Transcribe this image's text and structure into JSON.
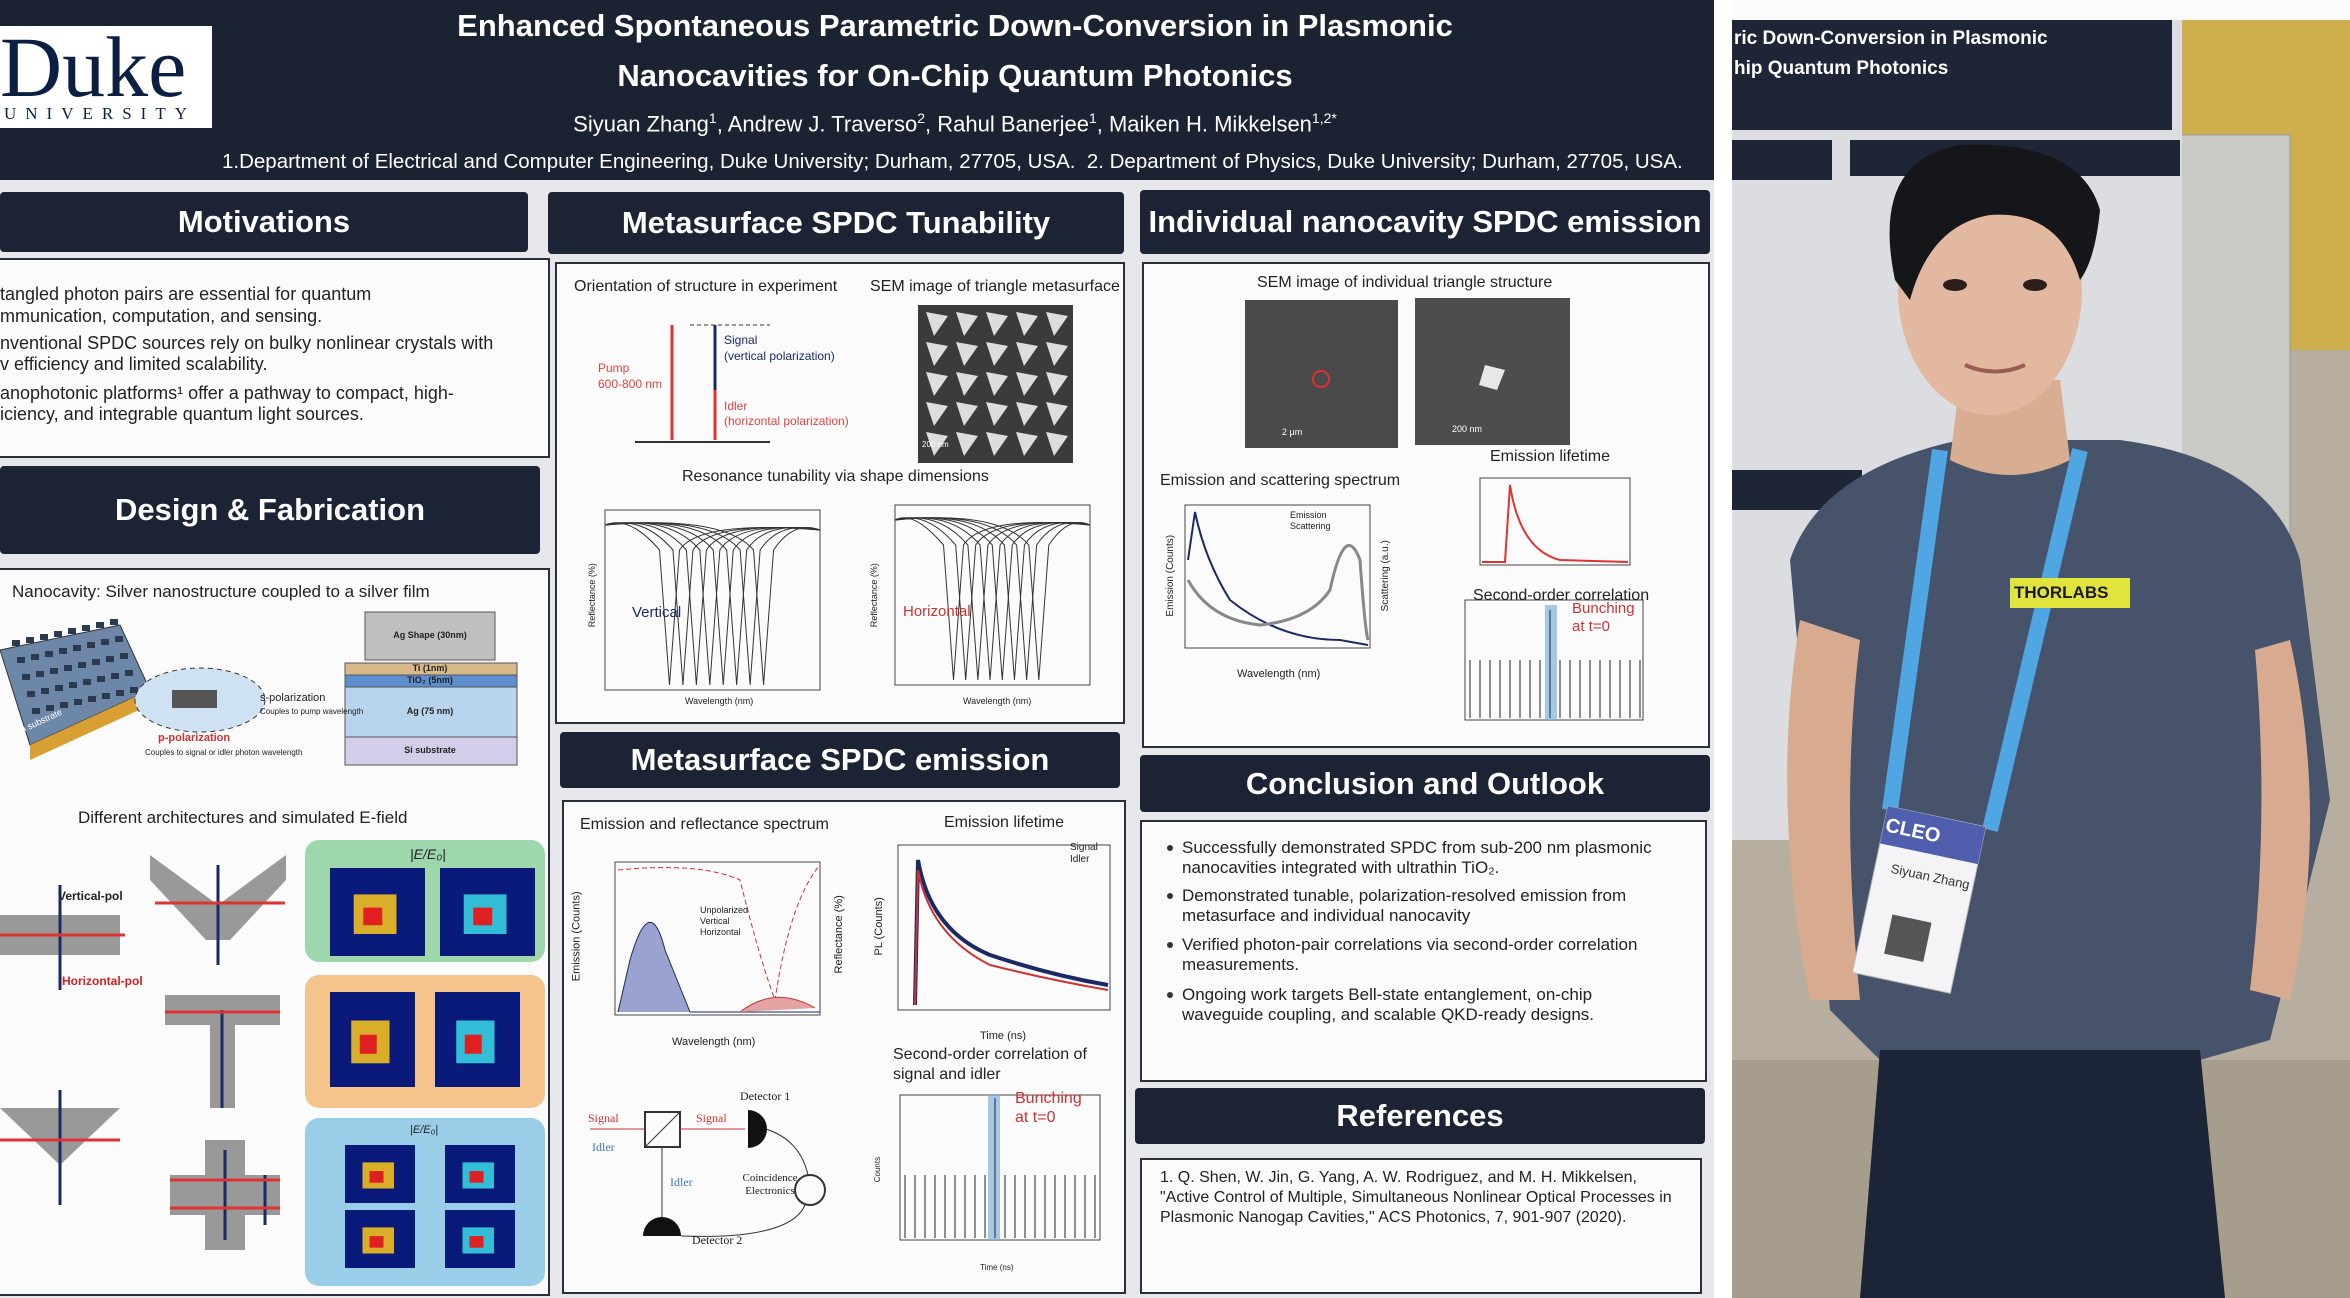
{
  "header": {
    "logo": "Duke",
    "logo_sub": "UNIVERSITY",
    "title_lines": [
      "Enhanced Spontaneous Parametric Down-Conversion in Plasmonic",
      "Nanocavities for On-Chip Quantum Photonics"
    ],
    "authors": [
      {
        "name": "Siyuan Zhang",
        "sup": "1"
      },
      {
        "name": ", Andrew J. Traverso",
        "sup": "2"
      },
      {
        "name": ", Rahul Banerjee",
        "sup": "1"
      },
      {
        "name": ", Maiken H. Mikkelsen",
        "sup": "1,2*"
      }
    ],
    "affiliations": "1.Department of Electrical and Computer Engineering, Duke University; Durham, 27705, USA.  2. Department of Physics, Duke University; Durham, 27705, USA."
  },
  "motivations": {
    "heading": "Motivations",
    "lines": [
      "tangled photon pairs are essential for quantum",
      "mmunication, computation, and sensing.",
      "nventional SPDC sources rely on bulky nonlinear crystals with",
      "v efficiency and limited scalability.",
      "anophotonic platforms¹ offer a pathway to compact, high-",
      "iciency, and integrable quantum light sources."
    ]
  },
  "design": {
    "heading": "Design & Fabrication",
    "caption": "Nanocavity: Silver nanostructure coupled to a silver film",
    "layers": [
      "Ag Shape (30nm)",
      "Ti (1nm)",
      "TiO₂ (5nm)",
      "Ag (75 nm)",
      "Si substrate"
    ],
    "s_pol": "s-polarization",
    "s_pol_note": "Couples to pump wavelength",
    "p_pol": "p-polarization",
    "p_pol_note": "Couples to signal or idler photon wavelength",
    "substrate": "silicon substrate",
    "arch_caption": "Different architectures and simulated E-field",
    "vertical_pol": "Vertical-pol",
    "horizontal_pol": "Horizontal-pol",
    "field_label": "|E/E₀|"
  },
  "tunability": {
    "heading": "Metasurface SPDC Tunability",
    "orientation": "Orientation of structure in experiment",
    "sem": "SEM image of triangle metasurface",
    "pump": "Pump",
    "pump_range": "600-800 nm",
    "signal": "Signal",
    "signal_pol": "(vertical polarization)",
    "idler": "Idler",
    "idler_pol": "(horizontal polarization)",
    "scale": "200 nm",
    "resonance": "Resonance tunability via shape dimensions",
    "vertical": "Vertical",
    "horizontal": "Horizontal",
    "xlabel": "Wavelength (nm)",
    "ylabel": "Reflectance (%)"
  },
  "emission": {
    "heading": "Metasurface SPDC emission",
    "spectrum_title": "Emission and reflectance spectrum",
    "spectrum_ylabel": "Emission (Counts)",
    "spectrum_y2label": "Reflectance (%)",
    "spectrum_xlabel": "Wavelength (nm)",
    "legend": [
      "Unpolarized",
      "Vertical",
      "Horizontal"
    ],
    "lifetime_title": "Emission lifetime",
    "lifetime_legend": [
      "Signal",
      "Idler"
    ],
    "lifetime_xlabel": "Time (ns)",
    "lifetime_ylabel": "PL (Counts)",
    "setup": {
      "signal": "Signal",
      "idler": "Idler",
      "detector1": "Detector 1",
      "detector2": "Detector 2",
      "coincidence": "Coincidence Electronics"
    },
    "g2_title_lines": [
      "Second-order correlation of",
      "signal and idler"
    ],
    "bunching_lines": [
      "Bunching",
      "at t=0"
    ],
    "g2_xlabel": "Time (ns)",
    "g2_ylabel": "Counts"
  },
  "individual": {
    "heading": "Individual nanocavity SPDC emission",
    "sem": "SEM image of individual triangle structure",
    "scale1": "2 μm",
    "scale2": "200 nm",
    "spectrum_title": "Emission and scattering spectrum",
    "legend": [
      "Emission",
      "Scattering"
    ],
    "xlabel": "Wavelength (nm)",
    "ylabel": "Emission (Counts)",
    "y2label": "Scattering (a.u.)",
    "lifetime_title": "Emission lifetime",
    "g2_title": "Second-order correlation",
    "bunching_lines": [
      "Bunching",
      "at t=0"
    ]
  },
  "conclusion": {
    "heading": "Conclusion and Outlook",
    "bullets": [
      "Successfully demonstrated SPDC from sub-200 nm plasmonic nanocavities integrated with ultrathin TiO₂.",
      "Demonstrated tunable, polarization-resolved emission from metasurface and individual nanocavity",
      "Verified photon-pair correlations via second-order correlation measurements.",
      "Ongoing work targets Bell-state entanglement, on-chip waveguide coupling, and scalable QKD-ready designs."
    ]
  },
  "references": {
    "heading": "References",
    "items": [
      "1. Q. Shen, W. Jin, G. Yang, A. W. Rodriguez, and M. H. Mikkelsen, \"Active Control of Multiple, Simultaneous Nonlinear Optical Processes in Plasmonic Nanogap Cavities,\" ACS Photonics, 7, 901-907 (2020)."
    ]
  },
  "photo": {
    "poster_lines": [
      "ric Down-Conversion in Plasmonic",
      "hip Quantum Photonics"
    ],
    "badge": "CLEO",
    "badge_name": "Siyuan Zhang",
    "shirt": "THORLABS"
  }
}
